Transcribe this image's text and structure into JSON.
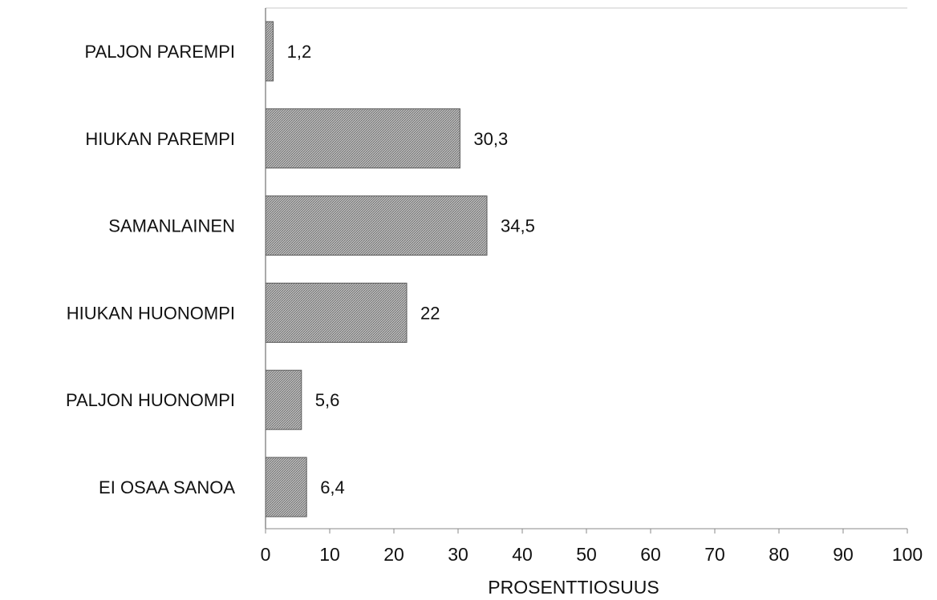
{
  "chart_data": {
    "type": "bar",
    "orientation": "horizontal",
    "categories": [
      "PALJON PAREMPI",
      "HIUKAN PAREMPI",
      "SAMANLAINEN",
      "HIUKAN HUONOMPI",
      "PALJON HUONOMPI",
      "EI OSAA SANOA"
    ],
    "values": [
      1.2,
      30.3,
      34.5,
      22,
      5.6,
      6.4
    ],
    "data_labels": [
      "1,2",
      "30,3",
      "34,5",
      "22",
      "5,6",
      "6,4"
    ],
    "title": "",
    "xlabel": "PROSENTTIOSUUS",
    "ylabel": "",
    "xlim": [
      0,
      100
    ],
    "xticks": [
      "0",
      "10",
      "20",
      "30",
      "40",
      "50",
      "60",
      "70",
      "80",
      "90",
      "100"
    ],
    "grid": false,
    "legend": "none",
    "bar_color": "#a9a9a9"
  }
}
